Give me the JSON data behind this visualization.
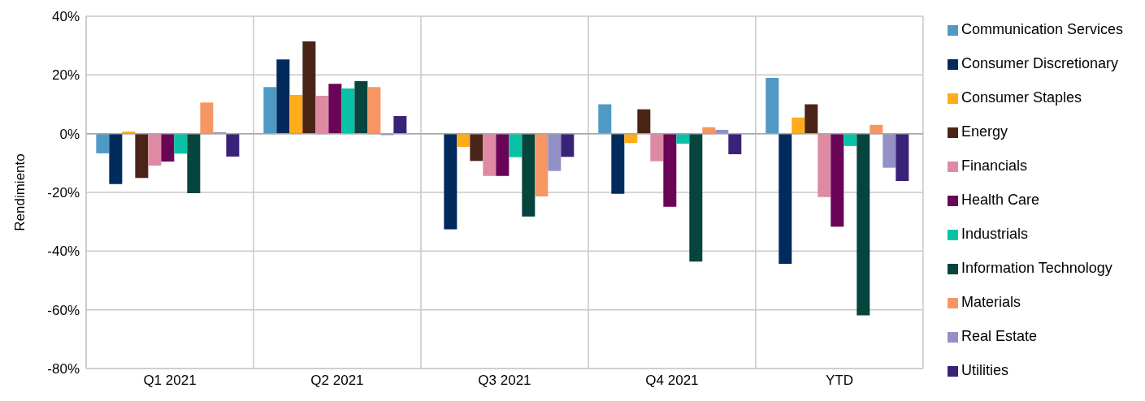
{
  "chart_data": {
    "type": "bar",
    "ylabel": "Rendimiento",
    "categories": [
      "Q1 2021",
      "Q2 2021",
      "Q3 2021",
      "Q4 2021",
      "YTD"
    ],
    "series": [
      {
        "name": "Communication Services",
        "color": "#4f9ac4",
        "values": [
          -6.7,
          15.9,
          0,
          10.0,
          19.0
        ]
      },
      {
        "name": "Consumer Discretionary",
        "color": "#002b5c",
        "values": [
          -17.2,
          25.3,
          -32.6,
          -20.5,
          -44.3
        ]
      },
      {
        "name": "Consumer Staples",
        "color": "#ffab1a",
        "values": [
          0.7,
          13.2,
          -4.5,
          -3.2,
          5.5
        ]
      },
      {
        "name": "Energy",
        "color": "#4a2517",
        "values": [
          -15.1,
          31.4,
          -9.3,
          8.3,
          10.0
        ]
      },
      {
        "name": "Financials",
        "color": "#de8aa2",
        "values": [
          -10.9,
          12.9,
          -14.4,
          -9.4,
          -21.6
        ]
      },
      {
        "name": "Health Care",
        "color": "#6a0457",
        "values": [
          -9.5,
          17.0,
          -14.4,
          -24.9,
          -31.7
        ]
      },
      {
        "name": "Industrials",
        "color": "#07c2a4",
        "values": [
          -6.8,
          15.4,
          -8.0,
          -3.4,
          -4.2
        ]
      },
      {
        "name": "Information Technology",
        "color": "#06443e",
        "values": [
          -20.3,
          17.9,
          -28.2,
          -43.6,
          -61.9
        ]
      },
      {
        "name": "Materials",
        "color": "#f69662",
        "values": [
          10.6,
          15.9,
          -21.4,
          2.2,
          3.0
        ]
      },
      {
        "name": "Real Estate",
        "color": "#9390c6",
        "values": [
          0.5,
          -0.5,
          -12.7,
          1.3,
          -11.6
        ]
      },
      {
        "name": "Utilities",
        "color": "#392378",
        "values": [
          -7.8,
          6.0,
          -7.9,
          -7.0,
          -16.1
        ]
      }
    ],
    "ylim": [
      -80,
      40
    ],
    "yticks": [
      {
        "value": -80,
        "label": "-80%"
      },
      {
        "value": -60,
        "label": "-60%"
      },
      {
        "value": -40,
        "label": "-40%"
      },
      {
        "value": -20,
        "label": "-20%"
      },
      {
        "value": 0,
        "label": "0%"
      },
      {
        "value": 20,
        "label": "20%"
      },
      {
        "value": 40,
        "label": "40%"
      }
    ],
    "grid": true,
    "legend": "right"
  }
}
